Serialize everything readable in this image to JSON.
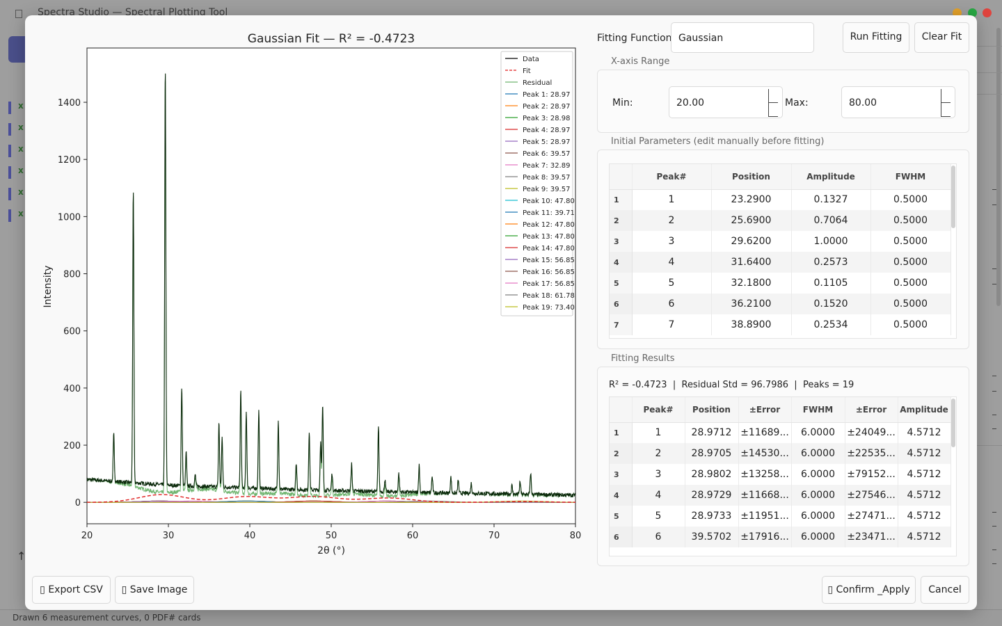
{
  "background": {
    "window_title": "Spectra Studio — Spectral Plotting Tool",
    "sidebar_items": [
      "x",
      "x",
      "x",
      "x",
      "x",
      "x"
    ],
    "status_text": "Drawn 6 measurement curves, 0 PDF# cards",
    "arrow_glyph": "↑",
    "colors": {
      "accent": "#4a4f8a",
      "close": "#e0443e",
      "maximize": "#27a843",
      "minimize": "#e3a12a"
    }
  },
  "dialog": {
    "fitting_function_label": "Fitting Function:",
    "fitting_function_value": "Gaussian",
    "run_fitting_label": "Run Fitting",
    "clear_fit_label": "Clear Fit",
    "x_range": {
      "title": "X-axis Range",
      "min_label": "Min:",
      "min_value": "20.00",
      "max_label": "Max:",
      "max_value": "80.00"
    },
    "initial_params": {
      "title": "Initial Parameters (edit manually before fitting)",
      "headers": [
        "Peak#",
        "Position",
        "Amplitude",
        "FWHM"
      ],
      "rows": [
        [
          "1",
          "1",
          "23.2900",
          "0.1327",
          "0.5000"
        ],
        [
          "2",
          "2",
          "25.6900",
          "0.7064",
          "0.5000"
        ],
        [
          "3",
          "3",
          "29.6200",
          "1.0000",
          "0.5000"
        ],
        [
          "4",
          "4",
          "31.6400",
          "0.2573",
          "0.5000"
        ],
        [
          "5",
          "5",
          "32.1800",
          "0.1105",
          "0.5000"
        ],
        [
          "6",
          "6",
          "36.2100",
          "0.1520",
          "0.5000"
        ],
        [
          "7",
          "7",
          "38.8900",
          "0.2534",
          "0.5000"
        ]
      ]
    },
    "results": {
      "title": "Fitting Results",
      "summary": "R² = -0.4723  |  Residual Std = 96.7986  |  Peaks = 19",
      "headers": [
        "Peak#",
        "Position",
        "±Error",
        "FWHM",
        "±Error",
        "Amplitude"
      ],
      "rows": [
        [
          "1",
          "1",
          "28.9712",
          "±11689...",
          "6.0000",
          "±24049...",
          "4.5712"
        ],
        [
          "2",
          "2",
          "28.9705",
          "±14530...",
          "6.0000",
          "±22535...",
          "4.5712"
        ],
        [
          "3",
          "3",
          "28.9802",
          "±13258...",
          "6.0000",
          "±79152...",
          "4.5712"
        ],
        [
          "4",
          "4",
          "28.9729",
          "±11668...",
          "6.0000",
          "±27546...",
          "4.5712"
        ],
        [
          "5",
          "5",
          "28.9733",
          "±11951...",
          "6.0000",
          "±27471...",
          "4.5712"
        ],
        [
          "6",
          "6",
          "39.5702",
          "±17916...",
          "6.0000",
          "±23471...",
          "4.5712"
        ]
      ]
    },
    "export_csv_label": "Export CSV",
    "save_image_label": "Save Image",
    "confirm_label": "Confirm _Apply",
    "cancel_label": "Cancel",
    "icon_glyph": "▯"
  },
  "chart_data": {
    "type": "line",
    "title": "Gaussian Fit — R² = -0.4723",
    "xlabel": "2θ (°)",
    "ylabel": "Intensity",
    "xlim": [
      20,
      80
    ],
    "ylim": [
      -75,
      1590
    ],
    "xticks": [
      20,
      30,
      40,
      50,
      60,
      70,
      80
    ],
    "yticks": [
      0,
      200,
      400,
      600,
      800,
      1000,
      1200,
      1400
    ],
    "legend_position": "top-right",
    "data_peaks": [
      [
        23.29,
        165
      ],
      [
        25.69,
        1030
      ],
      [
        29.62,
        1470
      ],
      [
        31.64,
        345
      ],
      [
        32.18,
        120
      ],
      [
        33.3,
        40
      ],
      [
        36.21,
        225
      ],
      [
        36.6,
        170
      ],
      [
        38.89,
        340
      ],
      [
        39.57,
        265
      ],
      [
        41.1,
        270
      ],
      [
        43.5,
        245
      ],
      [
        45.7,
        95
      ],
      [
        47.3,
        200
      ],
      [
        48.7,
        170
      ],
      [
        48.95,
        295
      ],
      [
        50.1,
        60
      ],
      [
        52.5,
        95
      ],
      [
        55.8,
        225
      ],
      [
        56.6,
        40
      ],
      [
        58.3,
        65
      ],
      [
        60.8,
        95
      ],
      [
        62.4,
        55
      ],
      [
        64.7,
        55
      ],
      [
        65.6,
        45
      ],
      [
        67.2,
        35
      ],
      [
        72.2,
        30
      ],
      [
        73.2,
        45
      ],
      [
        74.5,
        75
      ]
    ],
    "data_baseline": [
      [
        20,
        80
      ],
      [
        30,
        60
      ],
      [
        45,
        45
      ],
      [
        60,
        35
      ],
      [
        80,
        25
      ]
    ],
    "fit_humps": [
      [
        29.2,
        27,
        2.8
      ],
      [
        39.6,
        20,
        3.0
      ],
      [
        47.9,
        20,
        3.0
      ],
      [
        57.0,
        15,
        3.0
      ],
      [
        73.4,
        3,
        3.0
      ]
    ],
    "series": [
      {
        "name": "Data",
        "color": "#000000",
        "style": "solid"
      },
      {
        "name": "Fit",
        "color": "#e01f1f",
        "style": "dashed"
      },
      {
        "name": "Residual",
        "color": "#6fb46f",
        "style": "solid"
      },
      {
        "name": "Peak 1: 28.97",
        "color": "#1f77b4",
        "center": 28.97
      },
      {
        "name": "Peak 2: 28.97",
        "color": "#ff7f0e",
        "center": 28.97
      },
      {
        "name": "Peak 3: 28.98",
        "color": "#2ca02c",
        "center": 28.98
      },
      {
        "name": "Peak 4: 28.97",
        "color": "#d62728",
        "center": 28.97
      },
      {
        "name": "Peak 5: 28.97",
        "color": "#9467bd",
        "center": 28.97
      },
      {
        "name": "Peak 6: 39.57",
        "color": "#8c564b",
        "center": 39.57
      },
      {
        "name": "Peak 7: 32.89",
        "color": "#e377c2",
        "center": 32.89
      },
      {
        "name": "Peak 8: 39.57",
        "color": "#7f7f7f",
        "center": 39.57
      },
      {
        "name": "Peak 9: 39.57",
        "color": "#bcbd22",
        "center": 39.57
      },
      {
        "name": "Peak 10: 47.80",
        "color": "#17becf",
        "center": 47.8
      },
      {
        "name": "Peak 11: 39.71",
        "color": "#1f77b4",
        "center": 39.71
      },
      {
        "name": "Peak 12: 47.80",
        "color": "#ff7f0e",
        "center": 47.8
      },
      {
        "name": "Peak 13: 47.80",
        "color": "#2ca02c",
        "center": 47.8
      },
      {
        "name": "Peak 14: 47.80",
        "color": "#d62728",
        "center": 47.8
      },
      {
        "name": "Peak 15: 56.85",
        "color": "#9467bd",
        "center": 56.85
      },
      {
        "name": "Peak 16: 56.85",
        "color": "#8c564b",
        "center": 56.85
      },
      {
        "name": "Peak 17: 56.85",
        "color": "#e377c2",
        "center": 56.85
      },
      {
        "name": "Peak 18: 61.78",
        "color": "#7f7f7f",
        "center": 61.78
      },
      {
        "name": "Peak 19: 73.40",
        "color": "#bcbd22",
        "center": 73.4
      }
    ]
  }
}
